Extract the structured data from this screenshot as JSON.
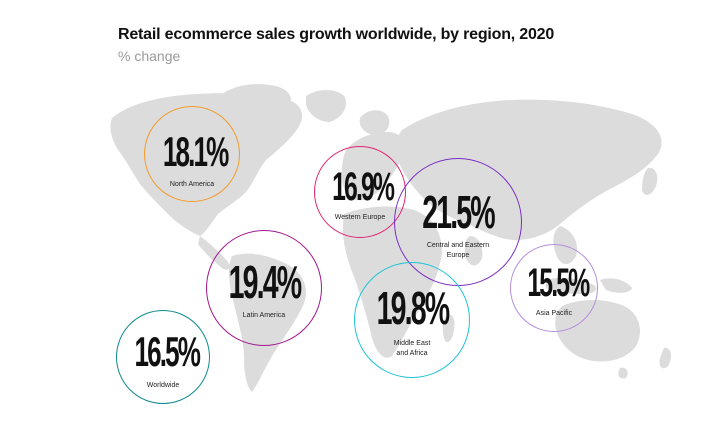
{
  "header": {
    "title": "Retail ecommerce sales growth worldwide, by region, 2020",
    "subtitle": "% change"
  },
  "colors": {
    "map": "#dcdcdc",
    "north_america": "#f39c2a",
    "western_europe": "#e0226f",
    "central_eastern_europe": "#7a2fc4",
    "latin_america": "#a0178f",
    "middle_east_africa": "#1fc3d6",
    "asia_pacific": "#b48ee0",
    "worldwide": "#0d8a8e"
  },
  "chart_data": {
    "type": "bubble-map",
    "title": "Retail ecommerce sales growth worldwide, by region, 2020",
    "subtitle": "% change",
    "unit": "%",
    "regions": [
      {
        "name": "North America",
        "value": 18.1,
        "display": "18.1%"
      },
      {
        "name": "Western Europe",
        "value": 16.9,
        "display": "16.9%"
      },
      {
        "name": "Central and Eastern Europe",
        "value": 21.5,
        "display": "21.5%"
      },
      {
        "name": "Latin America",
        "value": 19.4,
        "display": "19.4%"
      },
      {
        "name": "Middle East and Africa",
        "value": 19.8,
        "display": "19.8%"
      },
      {
        "name": "Asia Pacific",
        "value": 15.5,
        "display": "15.5%"
      },
      {
        "name": "Worldwide",
        "value": 16.5,
        "display": "16.5%"
      }
    ]
  }
}
